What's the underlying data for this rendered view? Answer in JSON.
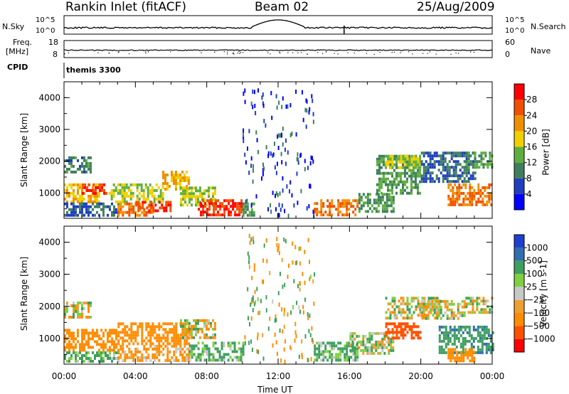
{
  "header": {
    "radar": "Rankin Inlet (fitACF)",
    "beam": "Beam 02",
    "date": "25/Aug/2009"
  },
  "noise_panel": {
    "left_label": "N.Sky",
    "right_label": "N.Search",
    "left_ticks": [
      "10^5",
      "10^0"
    ],
    "right_ticks": [
      "10^5",
      "10^0"
    ]
  },
  "freq_panel": {
    "left_label_top": "Freq.",
    "left_label_bottom": "[MHz]",
    "right_label": "Nave",
    "left_ticks": [
      "18",
      "8"
    ],
    "right_ticks": [
      "60",
      "0"
    ]
  },
  "cpid_panel": {
    "label": "CPID",
    "value": "themis 3300"
  },
  "colors": {
    "power": [
      "#0000ff",
      "#1f3fbf",
      "#3f7f5f",
      "#5faf3f",
      "#f0d000",
      "#f09000",
      "#f05000",
      "#ff0000"
    ],
    "velocity": [
      "#ff0000",
      "#ff5000",
      "#ff8c00",
      "#f0a030",
      "#c8c8c8",
      "#7fd040",
      "#3f9f5f",
      "#2f6fb0",
      "#1f3fd0"
    ]
  },
  "chart_data": [
    {
      "type": "heatmap",
      "title": "",
      "xlabel": "",
      "ylabel": "Slant Range [km]",
      "xlim": [
        "00:00",
        "24:00"
      ],
      "ylim": [
        200,
        4500
      ],
      "x_ticks": [
        "00:00",
        "04:00",
        "08:00",
        "12:00",
        "16:00",
        "20:00",
        "00:00"
      ],
      "y_ticks": [
        1000,
        2000,
        3000,
        4000
      ],
      "colorbar": {
        "label": "Power [dB]",
        "min": 0,
        "max": 32,
        "ticks": [
          4,
          8,
          12,
          16,
          20,
          24,
          28
        ]
      },
      "regions": [
        {
          "t0": 0.0,
          "t1": 1.5,
          "r0": 1700,
          "r1": 2150,
          "value": 10
        },
        {
          "t0": 0.0,
          "t1": 2.0,
          "r0": 700,
          "r1": 1300,
          "value": 20
        },
        {
          "t0": 0.0,
          "t1": 3.0,
          "r0": 300,
          "r1": 700,
          "value": 8
        },
        {
          "t0": 1.0,
          "t1": 2.5,
          "r0": 1000,
          "r1": 1300,
          "value": 28
        },
        {
          "t0": 2.5,
          "t1": 5.5,
          "r0": 700,
          "r1": 1300,
          "value": 16
        },
        {
          "t0": 3.0,
          "t1": 5.0,
          "r0": 300,
          "r1": 700,
          "value": 24
        },
        {
          "t0": 4.0,
          "t1": 6.0,
          "r0": 400,
          "r1": 750,
          "value": 28
        },
        {
          "t0": 5.5,
          "t1": 7.0,
          "r0": 1100,
          "r1": 1700,
          "value": 20
        },
        {
          "t0": 6.5,
          "t1": 8.5,
          "r0": 600,
          "r1": 1200,
          "value": 16
        },
        {
          "t0": 7.5,
          "t1": 10.0,
          "r0": 300,
          "r1": 800,
          "value": 28
        },
        {
          "t0": 10.0,
          "t1": 10.7,
          "r0": 300,
          "r1": 700,
          "value": 12
        },
        {
          "t0": 14.0,
          "t1": 16.5,
          "r0": 300,
          "r1": 800,
          "value": 24
        },
        {
          "t0": 16.5,
          "t1": 18.5,
          "r0": 400,
          "r1": 1000,
          "value": 12
        },
        {
          "t0": 17.5,
          "t1": 20.0,
          "r0": 1000,
          "r1": 2200,
          "value": 12
        },
        {
          "t0": 18.0,
          "t1": 20.0,
          "r0": 1800,
          "r1": 2200,
          "value": 16
        },
        {
          "t0": 20.0,
          "t1": 23.0,
          "r0": 1400,
          "r1": 2300,
          "value": 8
        },
        {
          "t0": 21.5,
          "t1": 24.0,
          "r0": 600,
          "r1": 1300,
          "value": 24
        },
        {
          "t0": 22.5,
          "t1": 24.0,
          "r0": 1800,
          "r1": 2300,
          "value": 12
        }
      ]
    },
    {
      "type": "heatmap",
      "title": "",
      "xlabel": "Time UT",
      "ylabel": "Slant Range [km]",
      "xlim": [
        "00:00",
        "24:00"
      ],
      "ylim": [
        200,
        4500
      ],
      "x_ticks": [
        "00:00",
        "04:00",
        "08:00",
        "12:00",
        "16:00",
        "20:00",
        "00:00"
      ],
      "y_ticks": [
        1000,
        2000,
        3000,
        4000
      ],
      "colorbar": {
        "label": "Velocity [m s-1]",
        "ticks": [
          -1000,
          -500,
          -100,
          -25,
          25,
          100,
          500,
          1000
        ]
      },
      "regions": [
        {
          "t0": 0.0,
          "t1": 1.5,
          "r0": 1700,
          "r1": 2150,
          "value": 0
        },
        {
          "t0": 0.0,
          "t1": 3.0,
          "r0": 600,
          "r1": 1300,
          "value": -300
        },
        {
          "t0": 0.0,
          "t1": 3.0,
          "r0": 300,
          "r1": 600,
          "value": 150
        },
        {
          "t0": 3.0,
          "t1": 7.0,
          "r0": 800,
          "r1": 1500,
          "value": -300
        },
        {
          "t0": 3.0,
          "t1": 7.0,
          "r0": 300,
          "r1": 800,
          "value": -150
        },
        {
          "t0": 6.5,
          "t1": 8.5,
          "r0": 1000,
          "r1": 1600,
          "value": 0
        },
        {
          "t0": 7.0,
          "t1": 10.0,
          "r0": 300,
          "r1": 900,
          "value": 150
        },
        {
          "t0": 14.0,
          "t1": 16.5,
          "r0": 300,
          "r1": 900,
          "value": 150
        },
        {
          "t0": 16.0,
          "t1": 18.5,
          "r0": 500,
          "r1": 1200,
          "value": 50
        },
        {
          "t0": 18.0,
          "t1": 20.0,
          "r0": 1000,
          "r1": 1500,
          "value": -700
        },
        {
          "t0": 18.0,
          "t1": 21.0,
          "r0": 1600,
          "r1": 2300,
          "value": 0
        },
        {
          "t0": 20.0,
          "t1": 22.5,
          "r0": 1600,
          "r1": 2200,
          "value": 0
        },
        {
          "t0": 21.0,
          "t1": 24.0,
          "r0": 600,
          "r1": 1400,
          "value": 400
        },
        {
          "t0": 21.5,
          "t1": 23.0,
          "r0": 300,
          "r1": 700,
          "value": -300
        },
        {
          "t0": 22.5,
          "t1": 24.0,
          "r0": 1800,
          "r1": 2300,
          "value": 0
        }
      ]
    }
  ]
}
